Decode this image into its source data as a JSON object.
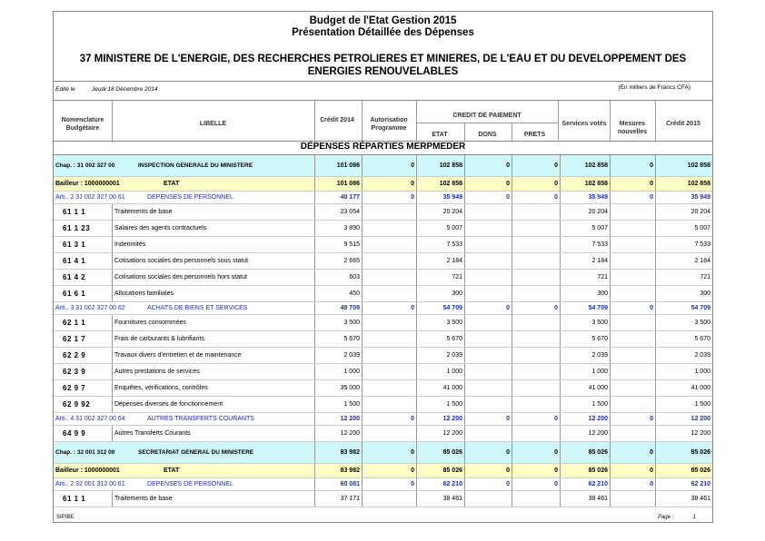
{
  "header": {
    "title1": "Budget de l'Etat  Gestion  2015",
    "title2": "Présentation Détaillée des Dépenses",
    "ministry_line1": "37   MINISTERE DE L'ENERGIE, DES RECHERCHES PETROLIERES ET MINIERES, DE L'EAU ET DU DEVELOPPEMENT DES",
    "ministry_line2": "ENERGIES RENOUVELABLES",
    "edited_label": "Edité le",
    "edited_date": "Jeudi 18 Décembre 2014",
    "unit_note": "(En milliers de Francs CFA)"
  },
  "columns": {
    "nomenclature": "Nomenclature Budgétaire",
    "libelle": "LIBELLE",
    "credit2014": "Crédit 2014",
    "autorisation": "Autorisation Programme",
    "credit_paiement": "CREDIT DE PAIEMENT",
    "etat": "ETAT",
    "dons": "DONS",
    "prets": "PRETS",
    "services_votes": "Services votés",
    "mesures_nouvelles": "Mesures nouvelles",
    "credit2015": "Crédit 2015"
  },
  "section_title": "DÉPENSES RÉPARTIES MERPMEDER",
  "rows": [
    {
      "type": "chap",
      "code": "Chap. :  31 002 327 00",
      "label": "INSPECTION GENERALE DU MINISTERE",
      "c2014": "101 086",
      "ap": "0",
      "etat": "102 858",
      "dons": "0",
      "prets": "0",
      "sv": "102 858",
      "mn": "0",
      "c2015": "102 858"
    },
    {
      "type": "bail",
      "code": "Bailleur : 1000000001",
      "label": "ETAT",
      "c2014": "101 086",
      "ap": "0",
      "etat": "102 858",
      "dons": "0",
      "prets": "0",
      "sv": "102 858",
      "mn": "0",
      "c2015": "102 858"
    },
    {
      "type": "arti",
      "code": "Arti..  2 31 002 327 00 61",
      "label": "DEPENSES DE PERSONNEL",
      "c2014": "40 177",
      "ap": "0",
      "etat": "35 949",
      "dons": "0",
      "prets": "0",
      "sv": "35 949",
      "mn": "0",
      "c2015": "35 949"
    },
    {
      "type": "line",
      "code": "61  1  1",
      "label": "Traitements de base",
      "c2014": "23 054",
      "ap": "",
      "etat": "20 204",
      "dons": "",
      "prets": "",
      "sv": "20 204",
      "mn": "",
      "c2015": "20 204"
    },
    {
      "type": "line",
      "code": "61  1  23",
      "label": "Salaires des agents contractuels",
      "c2014": "3 890",
      "ap": "",
      "etat": "5 007",
      "dons": "",
      "prets": "",
      "sv": "5 007",
      "mn": "",
      "c2015": "5 007"
    },
    {
      "type": "line",
      "code": "61  3  1",
      "label": "Indemnités",
      "c2014": "9 515",
      "ap": "",
      "etat": "7 533",
      "dons": "",
      "prets": "",
      "sv": "7 533",
      "mn": "",
      "c2015": "7 533"
    },
    {
      "type": "line",
      "code": "61  4  1",
      "label": "Cotisations sociales des personnels sous statut",
      "c2014": "2 665",
      "ap": "",
      "etat": "2 184",
      "dons": "",
      "prets": "",
      "sv": "2 184",
      "mn": "",
      "c2015": "2 184"
    },
    {
      "type": "line",
      "code": "61  4  2",
      "label": "Cotisations sociales des personnels hors statut",
      "c2014": "603",
      "ap": "",
      "etat": "721",
      "dons": "",
      "prets": "",
      "sv": "721",
      "mn": "",
      "c2015": "721"
    },
    {
      "type": "line",
      "code": "61  6  1",
      "label": "Allocations familiales",
      "c2014": "450",
      "ap": "",
      "etat": "300",
      "dons": "",
      "prets": "",
      "sv": "300",
      "mn": "",
      "c2015": "300"
    },
    {
      "type": "arti",
      "code": "Arti..  3 31 002 327 00 62",
      "label": "ACHATS DE BIENS ET SERVICES",
      "c2014": "48 709",
      "ap": "0",
      "etat": "54 709",
      "dons": "0",
      "prets": "0",
      "sv": "54 709",
      "mn": "0",
      "c2015": "54 709"
    },
    {
      "type": "line",
      "code": "62  1  1",
      "label": "Fournitures consommées",
      "c2014": "3 500",
      "ap": "",
      "etat": "3 500",
      "dons": "",
      "prets": "",
      "sv": "3 500",
      "mn": "",
      "c2015": "3 500"
    },
    {
      "type": "line",
      "code": "62  1  7",
      "label": "Frais de carburants & lubrifiants",
      "c2014": "5 670",
      "ap": "",
      "etat": "5 670",
      "dons": "",
      "prets": "",
      "sv": "5 670",
      "mn": "",
      "c2015": "5 670"
    },
    {
      "type": "line",
      "code": "62  2  9",
      "label": "Travaux divers d'entretien et de maintenance",
      "c2014": "2 039",
      "ap": "",
      "etat": "2 039",
      "dons": "",
      "prets": "",
      "sv": "2 039",
      "mn": "",
      "c2015": "2 039"
    },
    {
      "type": "line",
      "code": "62  3  9",
      "label": "Autres prestations de services",
      "c2014": "1 000",
      "ap": "",
      "etat": "1 000",
      "dons": "",
      "prets": "",
      "sv": "1 000",
      "mn": "",
      "c2015": "1 000"
    },
    {
      "type": "line",
      "code": "62  9  7",
      "label": "Enquêtes, vérifications, contrôles",
      "c2014": "35 000",
      "ap": "",
      "etat": "41 000",
      "dons": "",
      "prets": "",
      "sv": "41 000",
      "mn": "",
      "c2015": "41 000"
    },
    {
      "type": "line",
      "code": "62  9  92",
      "label": "Dépenses diverses de fonctionnement",
      "c2014": "1 500",
      "ap": "",
      "etat": "1 500",
      "dons": "",
      "prets": "",
      "sv": "1 500",
      "mn": "",
      "c2015": "1 500"
    },
    {
      "type": "arti",
      "code": "Arti..  4 31 002 327 00 64",
      "label": "AUTRES TRANSFERTS COURANTS",
      "c2014": "12 200",
      "ap": "0",
      "etat": "12 200",
      "dons": "0",
      "prets": "0",
      "sv": "12 200",
      "mn": "0",
      "c2015": "12 200"
    },
    {
      "type": "line",
      "code": "64  9  9",
      "label": "Autres Transferts Courants",
      "c2014": "12 200",
      "ap": "",
      "etat": "12 200",
      "dons": "",
      "prets": "",
      "sv": "12 200",
      "mn": "",
      "c2015": "12 200"
    },
    {
      "type": "chap",
      "code": "Chap. :  32 001 312 00",
      "label": "SECRETARIAT GENERAL DU MINISTERE",
      "c2014": "83 982",
      "ap": "0",
      "etat": "85 026",
      "dons": "0",
      "prets": "0",
      "sv": "85 026",
      "mn": "0",
      "c2015": "85 026"
    },
    {
      "type": "bail",
      "code": "Bailleur : 1000000001",
      "label": "ETAT",
      "c2014": "83 982",
      "ap": "0",
      "etat": "85 026",
      "dons": "0",
      "prets": "0",
      "sv": "85 026",
      "mn": "0",
      "c2015": "85 026"
    },
    {
      "type": "arti",
      "code": "Arti..  2 32 001 312 00 61",
      "label": "DEPENSES DE PERSONNEL",
      "c2014": "60 081",
      "ap": "0",
      "etat": "62 210",
      "dons": "0",
      "prets": "0",
      "sv": "62 210",
      "mn": "0",
      "c2015": "62 210"
    },
    {
      "type": "line",
      "code": "61  1  1",
      "label": "Traitements de base",
      "c2014": "37 171",
      "ap": "",
      "etat": "38 461",
      "dons": "",
      "prets": "",
      "sv": "38 461",
      "mn": "",
      "c2015": "38 461"
    }
  ],
  "footer": {
    "system": "SIPIBE",
    "page_label": "Page :",
    "page_number": "1"
  }
}
